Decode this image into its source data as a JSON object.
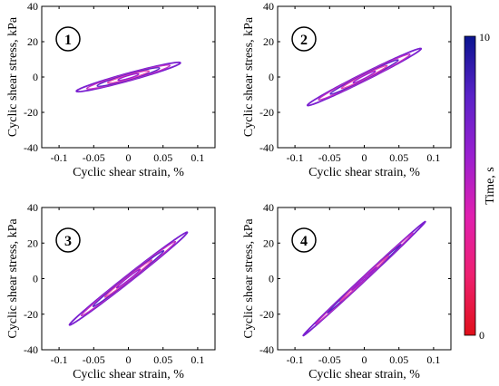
{
  "chart_data": [
    {
      "type": "line",
      "panel_label": "1",
      "xlabel": "Cyclic shear strain, %",
      "ylabel": "Cyclic shear stress, kPa",
      "xlim": [
        -0.125,
        0.125
      ],
      "ylim": [
        -40,
        40
      ],
      "xticks": [
        -0.1,
        -0.05,
        0,
        0.05,
        0.1
      ],
      "xtick_labels": [
        "-0.1",
        "-0.05",
        "0",
        "0.05",
        "0.1"
      ],
      "yticks": [
        -40,
        -20,
        0,
        20,
        40
      ],
      "ytick_labels": [
        "-40",
        "-20",
        "0",
        "20",
        "40"
      ],
      "series": [
        {
          "loops": [
            {
              "strain_amp": 0.075,
              "stress_amp": 8,
              "width": 2.2
            },
            {
              "strain_amp": 0.06,
              "stress_amp": 6.5,
              "width": 1.9
            },
            {
              "strain_amp": 0.045,
              "stress_amp": 5,
              "width": 1.6
            },
            {
              "strain_amp": 0.03,
              "stress_amp": 3.3,
              "width": 1.2
            },
            {
              "strain_amp": 0.015,
              "stress_amp": 1.7,
              "width": 0.8
            }
          ]
        }
      ]
    },
    {
      "type": "line",
      "panel_label": "2",
      "xlabel": "Cyclic shear strain, %",
      "ylabel": "Cyclic shear stress, kPa",
      "xlim": [
        -0.125,
        0.125
      ],
      "ylim": [
        -40,
        40
      ],
      "xticks": [
        -0.1,
        -0.05,
        0,
        0.05,
        0.1
      ],
      "xtick_labels": [
        "-0.1",
        "-0.05",
        "0",
        "0.05",
        "0.1"
      ],
      "yticks": [
        -40,
        -20,
        0,
        20,
        40
      ],
      "ytick_labels": [
        "-40",
        "-20",
        "0",
        "20",
        "40"
      ],
      "series": [
        {
          "loops": [
            {
              "strain_amp": 0.082,
              "stress_amp": 16,
              "width": 2.3
            },
            {
              "strain_amp": 0.066,
              "stress_amp": 12.8,
              "width": 2.0
            },
            {
              "strain_amp": 0.049,
              "stress_amp": 9.6,
              "width": 1.6
            },
            {
              "strain_amp": 0.033,
              "stress_amp": 6.4,
              "width": 1.2
            },
            {
              "strain_amp": 0.016,
              "stress_amp": 3.2,
              "width": 0.8
            }
          ]
        }
      ]
    },
    {
      "type": "line",
      "panel_label": "3",
      "xlabel": "Cyclic shear strain, %",
      "ylabel": "Cyclic shear stress, kPa",
      "xlim": [
        -0.125,
        0.125
      ],
      "ylim": [
        -40,
        40
      ],
      "xticks": [
        -0.1,
        -0.05,
        0,
        0.05,
        0.1
      ],
      "xtick_labels": [
        "-0.1",
        "-0.05",
        "0",
        "0.05",
        "0.1"
      ],
      "yticks": [
        -40,
        -20,
        0,
        20,
        40
      ],
      "ytick_labels": [
        "-40",
        "-20",
        "0",
        "20",
        "40"
      ],
      "series": [
        {
          "loops": [
            {
              "strain_amp": 0.085,
              "stress_amp": 26,
              "width": 2.4
            },
            {
              "strain_amp": 0.068,
              "stress_amp": 20.8,
              "width": 2.0
            },
            {
              "strain_amp": 0.051,
              "stress_amp": 15.6,
              "width": 1.6
            },
            {
              "strain_amp": 0.034,
              "stress_amp": 10.4,
              "width": 1.2
            },
            {
              "strain_amp": 0.017,
              "stress_amp": 5.2,
              "width": 0.8
            }
          ]
        }
      ]
    },
    {
      "type": "line",
      "panel_label": "4",
      "xlabel": "Cyclic shear strain, %",
      "ylabel": "Cyclic shear stress, kPa",
      "xlim": [
        -0.125,
        0.125
      ],
      "ylim": [
        -40,
        40
      ],
      "xticks": [
        -0.1,
        -0.05,
        0,
        0.05,
        0.1
      ],
      "xtick_labels": [
        "-0.1",
        "-0.05",
        "0",
        "0.05",
        "0.1"
      ],
      "yticks": [
        -40,
        -20,
        0,
        20,
        40
      ],
      "ytick_labels": [
        "-40",
        "-20",
        "0",
        "20",
        "40"
      ],
      "series": [
        {
          "loops": [
            {
              "strain_amp": 0.088,
              "stress_amp": 32,
              "width": 1.6
            },
            {
              "strain_amp": 0.07,
              "stress_amp": 25.6,
              "width": 1.3
            },
            {
              "strain_amp": 0.053,
              "stress_amp": 19.2,
              "width": 1.0
            },
            {
              "strain_amp": 0.035,
              "stress_amp": 12.8,
              "width": 0.8
            },
            {
              "strain_amp": 0.018,
              "stress_amp": 6.4,
              "width": 0.5
            }
          ]
        }
      ]
    }
  ],
  "colorbar": {
    "label": "Time, s",
    "min_label": "0",
    "max_label": "10",
    "colors": [
      "#0a1490",
      "#5a22c8",
      "#9a20d0",
      "#e020b0",
      "#ee2070",
      "#e0101a"
    ]
  }
}
